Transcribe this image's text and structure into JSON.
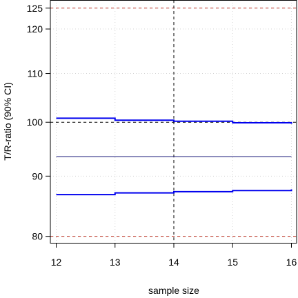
{
  "chart_data": {
    "type": "line",
    "xlabel": "sample size",
    "ylabel": "T/R-ratio  (90% CI)",
    "xlim": [
      11.9,
      16.1
    ],
    "ylim": [
      79,
      127
    ],
    "y_scale": "log",
    "grid": "on (dotted, light gray)",
    "x_ticks": [
      "12",
      "13",
      "14",
      "15",
      "16"
    ],
    "y_ticks": [
      "80",
      "90",
      "100",
      "110",
      "120",
      "125"
    ],
    "reference_lines": {
      "acceptance_limits": [
        80,
        125
      ],
      "acceptance_color": "#c0392b",
      "unity": 100,
      "unity_color": "#000000",
      "vertical_at_x": 14,
      "vertical_color": "#000000"
    },
    "point_estimate": {
      "x": [
        12,
        16
      ],
      "value": 93.5,
      "color": "#1a1a7a"
    },
    "series": [
      {
        "x": [
          12,
          13,
          14,
          15,
          16
        ],
        "values": [
          100.8,
          100.4,
          100.2,
          99.9,
          99.7
        ],
        "color": "#0000ee"
      },
      {
        "x": [
          12,
          13,
          14,
          15,
          16
        ],
        "values": [
          86.8,
          87.1,
          87.3,
          87.5,
          87.7
        ],
        "color": "#0000ee"
      }
    ]
  }
}
